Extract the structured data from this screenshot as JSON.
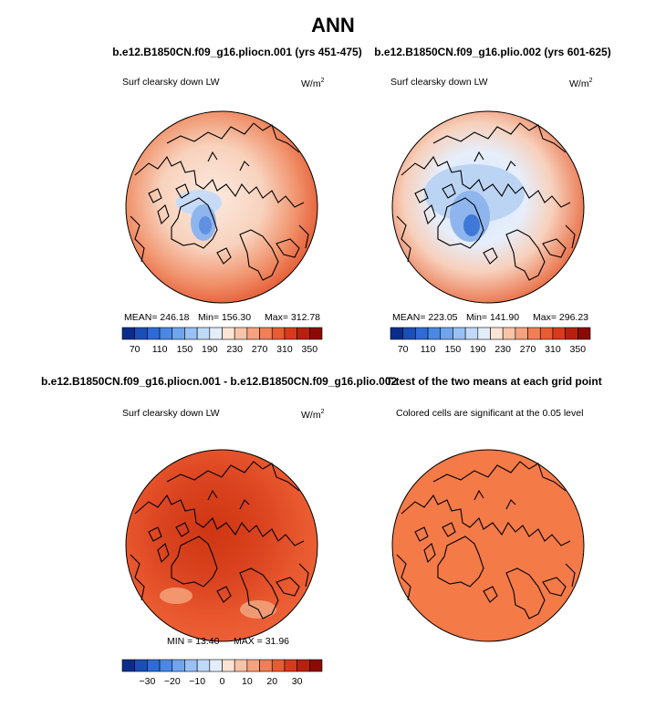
{
  "title": "ANN",
  "panels": [
    {
      "title": "b.e12.B1850CN.f09_g16.pliocn.001 (yrs 451-475)",
      "variable": "Surf clearsky down LW",
      "units": "W/m",
      "units_exp": "2",
      "stats": [
        "MEAN= 246.18",
        "Min= 156.30",
        "Max= 312.78"
      ]
    },
    {
      "title": "b.e12.B1850CN.f09_g16.plio.002 (yrs 601-625)",
      "variable": "Surf clearsky down LW",
      "units": "W/m",
      "units_exp": "2",
      "stats": [
        "MEAN= 223.05",
        "Min= 141.90",
        "Max= 296.23"
      ]
    },
    {
      "title": "b.e12.B1850CN.f09_g16.pliocn.001 - b.e12.B1850CN.f09_g16.plio.002",
      "variable": "Surf clearsky down LW",
      "units": "W/m",
      "units_exp": "2",
      "stats": [
        "MIN =  13.40",
        "MAX =  31.96"
      ]
    },
    {
      "title": "T-test of the two means at each grid point",
      "variable": "Colored cells are significant at the 0.05 level"
    }
  ],
  "colorbars": [
    {
      "labels": [
        "70",
        "110",
        "150",
        "190",
        "230",
        "270",
        "310",
        "350"
      ]
    },
    {
      "labels": [
        "70",
        "110",
        "150",
        "190",
        "230",
        "270",
        "310",
        "350"
      ]
    },
    {
      "labels": [
        "−30",
        "−20",
        "−10",
        "0",
        "10",
        "20",
        "30"
      ]
    }
  ]
}
